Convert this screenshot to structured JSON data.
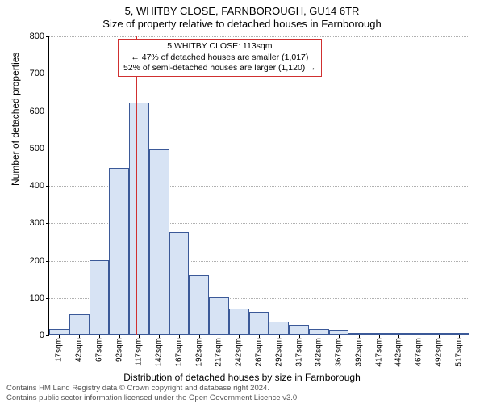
{
  "title_line1": "5, WHITBY CLOSE, FARNBOROUGH, GU14 6TR",
  "title_line2": "Size of property relative to detached houses in Farnborough",
  "ylabel": "Number of detached properties",
  "xlabel": "Distribution of detached houses by size in Farnborough",
  "footer_line1": "Contains HM Land Registry data © Crown copyright and database right 2024.",
  "footer_line2": "Contains public sector information licensed under the Open Government Licence v3.0.",
  "infobox": {
    "line1": "5 WHITBY CLOSE: 113sqm",
    "line2": "← 47% of detached houses are smaller (1,017)",
    "line3": "52% of semi-detached houses are larger (1,120) →",
    "border_color": "#d03030"
  },
  "chart": {
    "type": "histogram",
    "background_color": "#ffffff",
    "bar_fill": "#d7e3f4",
    "bar_border": "#3b5998",
    "grid_color": "#b0b0b0",
    "marker_color": "#d03030",
    "marker_x": 113,
    "ylim": [
      0,
      800
    ],
    "yticks": [
      0,
      100,
      200,
      300,
      400,
      500,
      600,
      700,
      800
    ],
    "x_start": 17,
    "x_step": 25,
    "x_count": 21,
    "x_unit": "sqm",
    "values": [
      15,
      55,
      200,
      445,
      620,
      495,
      275,
      160,
      100,
      70,
      60,
      35,
      25,
      15,
      10,
      5,
      3,
      2,
      2,
      1,
      1
    ],
    "label_fontsize": 12,
    "tick_fontsize": 11
  }
}
